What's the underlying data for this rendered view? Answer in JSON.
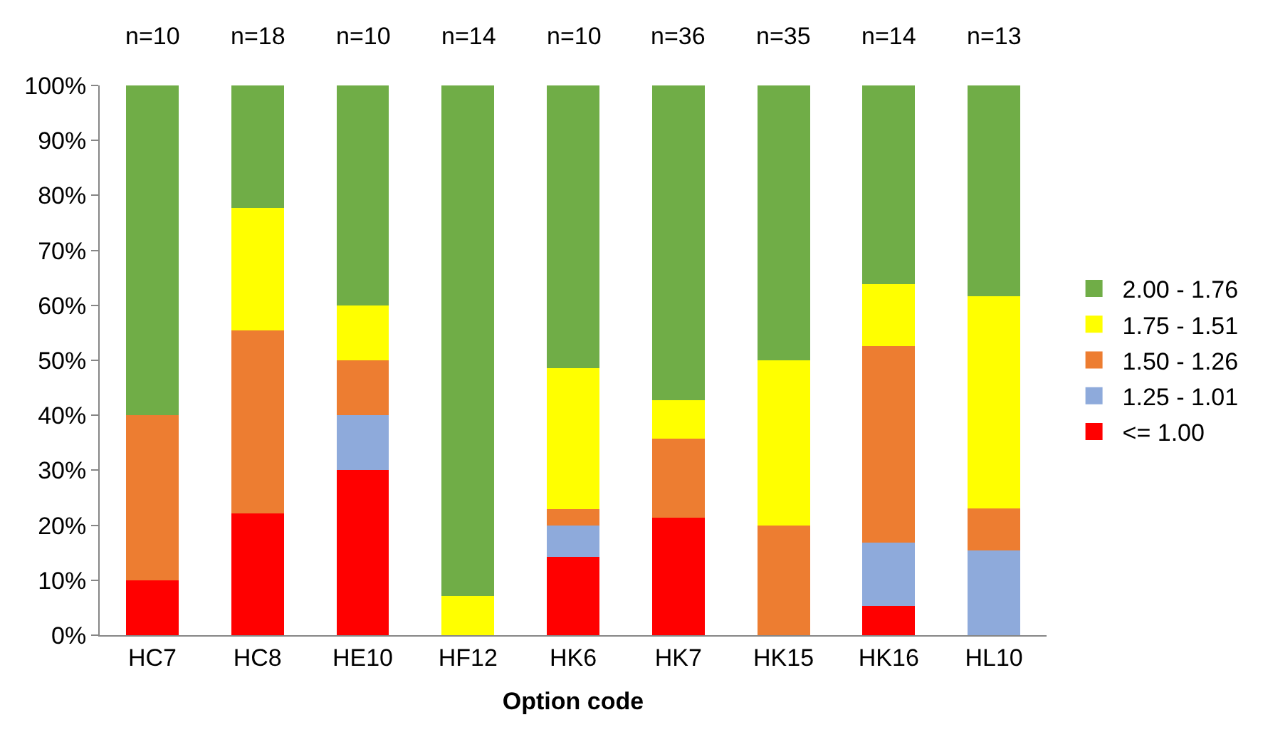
{
  "chart_data": {
    "type": "bar",
    "stacked": true,
    "xlabel": "Option code",
    "categories": [
      "HC7",
      "HC8",
      "HE10",
      "HF12",
      "HK6",
      "HK7",
      "HK15",
      "HK16",
      "HL10"
    ],
    "series": [
      {
        "name": "<= 1.00",
        "color": "#ff0000",
        "values": [
          10,
          22.2,
          30,
          0,
          14.3,
          21.4,
          0,
          5.3,
          0
        ]
      },
      {
        "name": "1.25 - 1.01",
        "color": "#8eaadb",
        "values": [
          0,
          0,
          10,
          0,
          5.7,
          0,
          0,
          11.5,
          15.4
        ]
      },
      {
        "name": "1.50 - 1.26",
        "color": "#ed7d31",
        "values": [
          30,
          33.3,
          10,
          0,
          2.9,
          14.3,
          20,
          35.8,
          7.7
        ]
      },
      {
        "name": "1.75 - 1.51",
        "color": "#ffff00",
        "values": [
          0,
          22.2,
          10,
          7.1,
          25.7,
          7.1,
          30,
          11.3,
          38.5
        ]
      },
      {
        "name": "2.00 - 1.76",
        "color": "#70ad47",
        "values": [
          60,
          22.3,
          40,
          92.9,
          51.4,
          57.2,
          50,
          36.1,
          38.4
        ]
      }
    ],
    "ylim": [
      0,
      100
    ],
    "yticks": [
      {
        "value": 0,
        "label": "0%"
      },
      {
        "value": 10,
        "label": "10%"
      },
      {
        "value": 20,
        "label": "20%"
      },
      {
        "value": 30,
        "label": "30%"
      },
      {
        "value": 40,
        "label": "40%"
      },
      {
        "value": 50,
        "label": "50%"
      },
      {
        "value": 60,
        "label": "60%"
      },
      {
        "value": 70,
        "label": "70%"
      },
      {
        "value": 80,
        "label": "80%"
      },
      {
        "value": 90,
        "label": "90%"
      },
      {
        "value": 100,
        "label": "100%"
      }
    ],
    "legend": "right",
    "annotations": [
      "n=10",
      "n=18",
      "n=10",
      "n=14",
      "n=10",
      "n=36",
      "n=35",
      "n=14",
      "n=13"
    ]
  }
}
